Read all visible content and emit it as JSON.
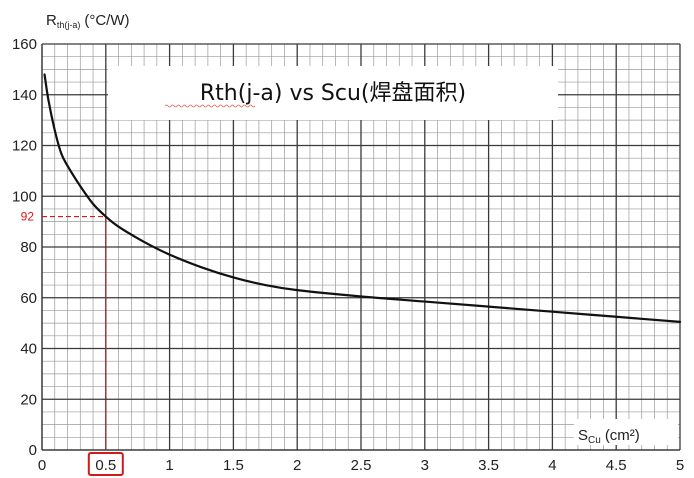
{
  "chart_data": {
    "type": "line",
    "title": "Rth(j-a) vs Scu(焊盘面积)",
    "ylabel_main": "R",
    "ylabel_sub": "th(j-a)",
    "ylabel_unit": "(°C/W)",
    "xlabel_main": "S",
    "xlabel_sub": "Cu",
    "xlabel_unit": "(cm²)",
    "xlim": [
      0,
      5
    ],
    "ylim": [
      0,
      160
    ],
    "x_ticks": [
      "0",
      "0.5",
      "1",
      "1.5",
      "2",
      "2.5",
      "3",
      "3.5",
      "4",
      "4.5",
      "5"
    ],
    "y_ticks": [
      "0",
      "20",
      "40",
      "60",
      "80",
      "100",
      "120",
      "140",
      "160"
    ],
    "grid": true,
    "series": [
      {
        "name": "Rth(j-a)",
        "x": [
          0.02,
          0.05,
          0.1,
          0.15,
          0.2,
          0.3,
          0.4,
          0.5,
          0.6,
          0.8,
          1.0,
          1.25,
          1.5,
          1.75,
          2.0,
          2.5,
          3.0,
          3.5,
          4.0,
          4.5,
          5.0
        ],
        "y": [
          148,
          138,
          126,
          117,
          112,
          104,
          97,
          92,
          88,
          82,
          77,
          72,
          68,
          65,
          63,
          60.5,
          58.5,
          56.5,
          54.5,
          52.5,
          50.5
        ]
      }
    ],
    "annotation": {
      "x": 0.5,
      "y": 92,
      "y_label": "92",
      "x_label": "0.5",
      "color": "#d21a1a"
    }
  }
}
